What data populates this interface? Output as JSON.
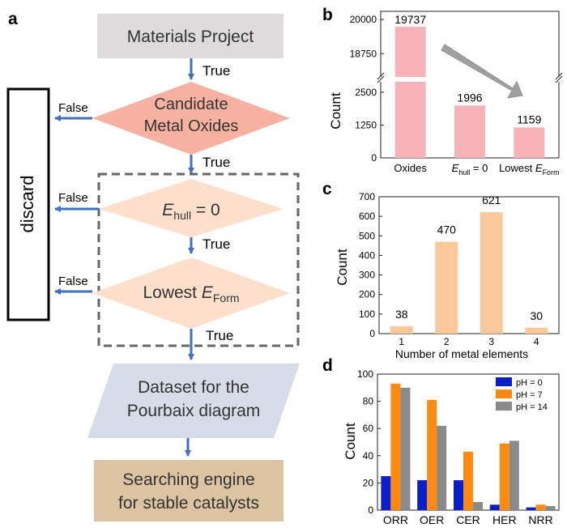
{
  "panel_labels": {
    "a": "a",
    "b": "b",
    "c": "c",
    "d": "d"
  },
  "flowchart": {
    "discard": "discard",
    "materials_project": "Materials Project",
    "candidate_line1": "Candidate",
    "candidate_line2": "Metal Oxides",
    "ehull_main": "E",
    "ehull_sub": "hull",
    "ehull_rest": " = 0",
    "lowest_main": "Lowest ",
    "lowest_e": "E",
    "lowest_sub": "Form",
    "dataset_line1": "Dataset for the",
    "dataset_line2": "Pourbaix diagram",
    "engine_line1": "Searching engine",
    "engine_line2": "for stable catalysts",
    "true_label": "True",
    "false_label": "False",
    "colors": {
      "grey_box": "#dddbdb",
      "diamond_dark": "#f7b1a1",
      "diamond_light": "#fde0cb",
      "parallelogram": "#d6dde8",
      "engine_box": "#dcc4a2",
      "arrow": "#3f71c0"
    }
  },
  "chart_data": [
    {
      "panel": "b",
      "type": "bar",
      "categories": [
        "Oxides",
        "E_hull = 0",
        "Lowest E_Form"
      ],
      "category_labels": [
        {
          "main": "Oxides",
          "sub": "",
          "rest": ""
        },
        {
          "main": "E",
          "sub": "hull",
          "rest": " = 0"
        },
        {
          "main": "Lowest E",
          "sub": "Form",
          "rest": ""
        }
      ],
      "values": [
        19737,
        1996,
        1159
      ],
      "value_labels": [
        "19737",
        "1996",
        "1159"
      ],
      "ylabel": "Count",
      "y_broken": true,
      "lower_range": [
        0,
        2900
      ],
      "upper_range": [
        17900,
        20300
      ],
      "lower_ticks": [
        0,
        1250,
        2500
      ],
      "upper_ticks": [
        18750,
        20000
      ],
      "color": "#f8b3b8"
    },
    {
      "panel": "c",
      "type": "bar",
      "categories": [
        "1",
        "2",
        "3",
        "4"
      ],
      "values": [
        38,
        470,
        621,
        30
      ],
      "value_labels": [
        "38",
        "470",
        "621",
        "30"
      ],
      "xlabel": "Number of metal elements",
      "ylabel": "Count",
      "ylim": [
        0,
        700
      ],
      "yticks": [
        0,
        100,
        200,
        300,
        400,
        500,
        600,
        700
      ],
      "color": "#fbc89a"
    },
    {
      "panel": "d",
      "type": "bar",
      "categories": [
        "ORR",
        "OER",
        "CER",
        "HER",
        "NRR"
      ],
      "series": [
        {
          "name": "pH = 0",
          "values": [
            25,
            22,
            22,
            4,
            2
          ],
          "color": "#0a1fc8"
        },
        {
          "name": "pH = 7",
          "values": [
            93,
            81,
            43,
            49,
            4
          ],
          "color": "#ff8a12"
        },
        {
          "name": "pH = 14",
          "values": [
            90,
            62,
            6,
            51,
            3
          ],
          "color": "#8a8a8a"
        }
      ],
      "ylabel": "Count",
      "ylim": [
        0,
        100
      ],
      "yticks": [
        0,
        20,
        40,
        60,
        80,
        100
      ],
      "legend": "top-right"
    }
  ]
}
